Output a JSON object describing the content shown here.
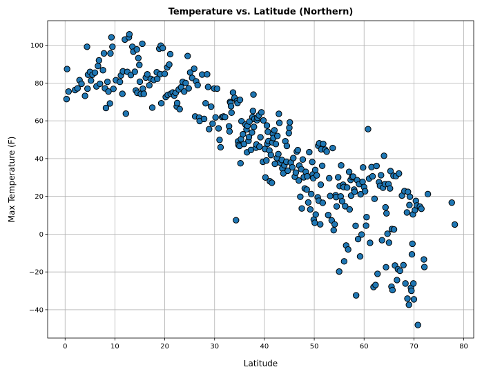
{
  "chart_data": {
    "type": "scatter",
    "title": "Temperature vs. Latitude (Northern)",
    "xlabel": "Latitude",
    "ylabel": "Max Temperature (F)",
    "xlim": [
      -3.5,
      82
    ],
    "ylim": [
      -55,
      113
    ],
    "xticks": [
      0,
      10,
      20,
      30,
      40,
      50,
      60,
      70,
      80
    ],
    "yticks": [
      -40,
      -20,
      0,
      20,
      40,
      60,
      80,
      100
    ],
    "grid": true,
    "marker_color": "#1f77b4",
    "marker_edge_color": "#000000",
    "points": [
      [
        0.3,
        71.5
      ],
      [
        0.4,
        87.4
      ],
      [
        0.7,
        75.5
      ],
      [
        2.0,
        76.3
      ],
      [
        2.5,
        77.2
      ],
      [
        2.9,
        81.5
      ],
      [
        3.3,
        79.6
      ],
      [
        4.0,
        73.2
      ],
      [
        4.4,
        99.2
      ],
      [
        4.5,
        77.0
      ],
      [
        4.6,
        84.4
      ],
      [
        5.0,
        85.9
      ],
      [
        5.2,
        81.3
      ],
      [
        5.5,
        84.4
      ],
      [
        6.0,
        85.5
      ],
      [
        6.3,
        78.2
      ],
      [
        6.6,
        89.0
      ],
      [
        6.8,
        92.0
      ],
      [
        7.0,
        79.6
      ],
      [
        7.6,
        86.8
      ],
      [
        7.8,
        95.7
      ],
      [
        8.0,
        77.2
      ],
      [
        8.2,
        66.8
      ],
      [
        8.5,
        80.6
      ],
      [
        8.7,
        75.5
      ],
      [
        9.0,
        69.2
      ],
      [
        9.1,
        95.7
      ],
      [
        9.3,
        104.2
      ],
      [
        9.5,
        99.2
      ],
      [
        9.7,
        76.9
      ],
      [
        10.2,
        81.5
      ],
      [
        11.0,
        80.6
      ],
      [
        11.2,
        84.0
      ],
      [
        11.5,
        74.3
      ],
      [
        11.6,
        86.2
      ],
      [
        12.0,
        103.0
      ],
      [
        12.2,
        63.8
      ],
      [
        12.5,
        85.9
      ],
      [
        12.8,
        104.2
      ],
      [
        12.9,
        105.8
      ],
      [
        13.2,
        84.2
      ],
      [
        13.5,
        99.2
      ],
      [
        13.7,
        96.6
      ],
      [
        14.0,
        86.0
      ],
      [
        14.2,
        76.1
      ],
      [
        14.4,
        97.8
      ],
      [
        14.5,
        74.8
      ],
      [
        14.7,
        93.2
      ],
      [
        14.9,
        89.6
      ],
      [
        15.0,
        80.7
      ],
      [
        15.2,
        74.2
      ],
      [
        15.5,
        100.8
      ],
      [
        15.6,
        77.0
      ],
      [
        15.8,
        74.3
      ],
      [
        16.2,
        82.9
      ],
      [
        16.5,
        84.6
      ],
      [
        16.9,
        78.8
      ],
      [
        17.2,
        82.2
      ],
      [
        17.5,
        67.0
      ],
      [
        17.8,
        81.6
      ],
      [
        18.4,
        85.7
      ],
      [
        18.5,
        82.2
      ],
      [
        18.9,
        98.2
      ],
      [
        19.1,
        84.7
      ],
      [
        19.2,
        99.8
      ],
      [
        19.3,
        69.3
      ],
      [
        19.6,
        98.5
      ],
      [
        20.0,
        84.9
      ],
      [
        20.2,
        72.6
      ],
      [
        20.5,
        88.3
      ],
      [
        20.6,
        73.7
      ],
      [
        20.9,
        89.8
      ],
      [
        21.1,
        95.3
      ],
      [
        21.2,
        74.3
      ],
      [
        21.6,
        75.0
      ],
      [
        21.9,
        73.3
      ],
      [
        22.2,
        74.8
      ],
      [
        22.4,
        67.6
      ],
      [
        22.5,
        69.4
      ],
      [
        22.8,
        76.6
      ],
      [
        23.0,
        66.2
      ],
      [
        23.3,
        77.8
      ],
      [
        23.6,
        80.6
      ],
      [
        23.9,
        75.5
      ],
      [
        24.2,
        80.0
      ],
      [
        24.6,
        94.3
      ],
      [
        24.8,
        77.2
      ],
      [
        25.1,
        85.6
      ],
      [
        25.5,
        82.7
      ],
      [
        25.9,
        87.6
      ],
      [
        26.1,
        62.3
      ],
      [
        26.3,
        80.9
      ],
      [
        26.6,
        78.9
      ],
      [
        26.9,
        61.7
      ],
      [
        27.0,
        59.9
      ],
      [
        27.5,
        84.5
      ],
      [
        27.9,
        61.0
      ],
      [
        28.2,
        69.3
      ],
      [
        28.5,
        84.6
      ],
      [
        28.7,
        77.9
      ],
      [
        28.9,
        55.6
      ],
      [
        29.3,
        67.5
      ],
      [
        29.6,
        58.5
      ],
      [
        29.9,
        77.1
      ],
      [
        30.2,
        61.8
      ],
      [
        30.5,
        77.0
      ],
      [
        30.8,
        56.0
      ],
      [
        31.0,
        49.9
      ],
      [
        31.2,
        46.0
      ],
      [
        31.5,
        62.0
      ],
      [
        31.8,
        62.3
      ],
      [
        32.1,
        62.0
      ],
      [
        32.9,
        57.1
      ],
      [
        33.0,
        54.4
      ],
      [
        33.1,
        70.0
      ],
      [
        33.2,
        69.5
      ],
      [
        33.3,
        67.7
      ],
      [
        33.4,
        64.3
      ],
      [
        33.7,
        75.0
      ],
      [
        34.0,
        72.2
      ],
      [
        34.3,
        7.4
      ],
      [
        34.5,
        70.5
      ],
      [
        34.6,
        69.4
      ],
      [
        34.7,
        49.1
      ],
      [
        34.8,
        47.2
      ],
      [
        35.0,
        46.7
      ],
      [
        35.1,
        71.1
      ],
      [
        35.2,
        37.5
      ],
      [
        35.3,
        50.3
      ],
      [
        35.4,
        59.8
      ],
      [
        35.7,
        52.9
      ],
      [
        35.9,
        47.7
      ],
      [
        36.2,
        58.0
      ],
      [
        36.4,
        55.5
      ],
      [
        36.5,
        43.3
      ],
      [
        36.6,
        57.3
      ],
      [
        36.8,
        49.4
      ],
      [
        36.9,
        51.4
      ],
      [
        37.0,
        59.6
      ],
      [
        37.3,
        44.6
      ],
      [
        37.5,
        53.8
      ],
      [
        37.6,
        62.0
      ],
      [
        37.7,
        65.2
      ],
      [
        37.8,
        73.9
      ],
      [
        37.9,
        56.8
      ],
      [
        38.0,
        61.0
      ],
      [
        38.3,
        45.8
      ],
      [
        38.4,
        47.5
      ],
      [
        38.5,
        60.3
      ],
      [
        38.6,
        61.6
      ],
      [
        38.9,
        62.9
      ],
      [
        39.0,
        46.3
      ],
      [
        39.2,
        51.3
      ],
      [
        39.4,
        64.5
      ],
      [
        39.7,
        38.3
      ],
      [
        39.8,
        60.2
      ],
      [
        40.1,
        45.1
      ],
      [
        40.2,
        30.0
      ],
      [
        40.4,
        39.0
      ],
      [
        40.5,
        57.5
      ],
      [
        40.6,
        47.8
      ],
      [
        40.7,
        54.2
      ],
      [
        40.8,
        49.3
      ],
      [
        41.0,
        44.3
      ],
      [
        41.1,
        28.0
      ],
      [
        41.3,
        41.9
      ],
      [
        41.5,
        27.2
      ],
      [
        41.6,
        48.6
      ],
      [
        41.7,
        53.1
      ],
      [
        41.8,
        50.9
      ],
      [
        42.0,
        55.0
      ],
      [
        42.1,
        37.2
      ],
      [
        42.3,
        47.7
      ],
      [
        42.5,
        40.3
      ],
      [
        42.6,
        52.0
      ],
      [
        42.8,
        42.4
      ],
      [
        42.9,
        63.7
      ],
      [
        43.0,
        58.9
      ],
      [
        43.2,
        37.8
      ],
      [
        43.5,
        39.3
      ],
      [
        43.6,
        34.8
      ],
      [
        43.8,
        32.2
      ],
      [
        44.0,
        36.5
      ],
      [
        44.2,
        49.2
      ],
      [
        44.4,
        38.3
      ],
      [
        44.5,
        46.7
      ],
      [
        44.7,
        33.6
      ],
      [
        44.9,
        53.5
      ],
      [
        45.0,
        56.3
      ],
      [
        45.1,
        59.2
      ],
      [
        45.3,
        37.9
      ],
      [
        45.6,
        35.4
      ],
      [
        45.8,
        40.3
      ],
      [
        46.1,
        30.4
      ],
      [
        46.3,
        32.6
      ],
      [
        46.5,
        43.7
      ],
      [
        46.7,
        44.5
      ],
      [
        46.9,
        28.4
      ],
      [
        47.0,
        36.3
      ],
      [
        47.2,
        19.8
      ],
      [
        47.4,
        34.4
      ],
      [
        47.5,
        13.6
      ],
      [
        47.7,
        39.5
      ],
      [
        47.9,
        30.1
      ],
      [
        48.1,
        24.2
      ],
      [
        48.3,
        33.0
      ],
      [
        48.5,
        23.6
      ],
      [
        48.6,
        30.6
      ],
      [
        48.8,
        16.8
      ],
      [
        49.0,
        43.4
      ],
      [
        49.2,
        13.1
      ],
      [
        49.4,
        21.2
      ],
      [
        49.6,
        38.2
      ],
      [
        49.7,
        31.6
      ],
      [
        49.8,
        29.6
      ],
      [
        49.9,
        7.7
      ],
      [
        50.1,
        6.0
      ],
      [
        50.2,
        34.0
      ],
      [
        50.3,
        10.4
      ],
      [
        50.5,
        31.1
      ],
      [
        50.7,
        19.5
      ],
      [
        50.8,
        46.8
      ],
      [
        50.9,
        17.7
      ],
      [
        51.0,
        48.1
      ],
      [
        51.2,
        5.2
      ],
      [
        51.3,
        26.2
      ],
      [
        51.4,
        44.9
      ],
      [
        51.6,
        36.2
      ],
      [
        51.7,
        16.6
      ],
      [
        51.8,
        47.8
      ],
      [
        52.2,
        44.7
      ],
      [
        52.5,
        43.7
      ],
      [
        52.8,
        10.1
      ],
      [
        53.0,
        29.6
      ],
      [
        53.2,
        20.2
      ],
      [
        53.5,
        7.3
      ],
      [
        53.7,
        45.6
      ],
      [
        53.9,
        2.1
      ],
      [
        54.1,
        5.2
      ],
      [
        54.3,
        20.6
      ],
      [
        54.4,
        19.6
      ],
      [
        54.5,
        14.7
      ],
      [
        54.8,
        30.1
      ],
      [
        55.0,
        -19.8
      ],
      [
        55.1,
        25.4
      ],
      [
        55.3,
        20.0
      ],
      [
        55.4,
        36.4
      ],
      [
        55.6,
        17.4
      ],
      [
        55.8,
        26.2
      ],
      [
        55.9,
        24.9
      ],
      [
        56.0,
        -14.4
      ],
      [
        56.2,
        14.8
      ],
      [
        56.4,
        -6.0
      ],
      [
        56.6,
        24.7
      ],
      [
        56.8,
        -8.1
      ],
      [
        57.0,
        33.0
      ],
      [
        57.1,
        13.1
      ],
      [
        57.3,
        28.7
      ],
      [
        57.4,
        20.4
      ],
      [
        57.6,
        30.2
      ],
      [
        57.8,
        30.5
      ],
      [
        58.0,
        23.6
      ],
      [
        58.1,
        22.4
      ],
      [
        58.3,
        4.4
      ],
      [
        58.4,
        -32.4
      ],
      [
        58.6,
        28.6
      ],
      [
        58.8,
        -2.6
      ],
      [
        59.0,
        26.5
      ],
      [
        59.2,
        -11.8
      ],
      [
        59.3,
        21.1
      ],
      [
        59.5,
        -0.2
      ],
      [
        59.7,
        27.7
      ],
      [
        59.8,
        35.3
      ],
      [
        60.0,
        24.9
      ],
      [
        60.2,
        22.7
      ],
      [
        60.4,
        4.5
      ],
      [
        60.5,
        9.0
      ],
      [
        60.8,
        55.6
      ],
      [
        61.0,
        29.4
      ],
      [
        61.2,
        -4.6
      ],
      [
        61.5,
        35.5
      ],
      [
        61.7,
        30.6
      ],
      [
        61.9,
        -28.0
      ],
      [
        62.1,
        18.7
      ],
      [
        62.3,
        -26.9
      ],
      [
        62.5,
        36.1
      ],
      [
        62.7,
        -21.0
      ],
      [
        63.0,
        27.5
      ],
      [
        63.2,
        25.6
      ],
      [
        63.4,
        31.2
      ],
      [
        63.6,
        -3.2
      ],
      [
        63.8,
        24.6
      ],
      [
        64.0,
        41.5
      ],
      [
        64.2,
        26.5
      ],
      [
        64.3,
        14.2
      ],
      [
        64.4,
        -17.5
      ],
      [
        64.5,
        11.0
      ],
      [
        64.7,
        0.2
      ],
      [
        64.9,
        26.5
      ],
      [
        65.0,
        -4.5
      ],
      [
        65.2,
        24.2
      ],
      [
        65.3,
        33.4
      ],
      [
        65.5,
        -27.8
      ],
      [
        65.6,
        2.7
      ],
      [
        65.7,
        -29.6
      ],
      [
        65.9,
        30.9
      ],
      [
        66.0,
        2.5
      ],
      [
        66.2,
        -16.6
      ],
      [
        66.4,
        30.7
      ],
      [
        66.6,
        -24.3
      ],
      [
        66.8,
        -18.6
      ],
      [
        67.0,
        32.1
      ],
      [
        67.2,
        -19.4
      ],
      [
        67.6,
        20.4
      ],
      [
        67.9,
        -16.4
      ],
      [
        68.1,
        22.8
      ],
      [
        68.3,
        -26.1
      ],
      [
        68.6,
        11.5
      ],
      [
        68.7,
        -34.1
      ],
      [
        68.8,
        22.4
      ],
      [
        69.0,
        -37.4
      ],
      [
        69.1,
        15.4
      ],
      [
        69.2,
        19.8
      ],
      [
        69.4,
        -28.4
      ],
      [
        69.5,
        -30.0
      ],
      [
        69.6,
        -10.7
      ],
      [
        69.7,
        -5.1
      ],
      [
        69.8,
        10.5
      ],
      [
        69.9,
        -26.1
      ],
      [
        70.0,
        -34.5
      ],
      [
        70.2,
        12.7
      ],
      [
        70.4,
        17.6
      ],
      [
        70.6,
        15.2
      ],
      [
        70.8,
        -48.1
      ],
      [
        71.2,
        14.6
      ],
      [
        71.5,
        13.4
      ],
      [
        72.0,
        -13.4
      ],
      [
        72.1,
        -17.4
      ],
      [
        72.8,
        21.2
      ],
      [
        77.6,
        16.7
      ],
      [
        78.2,
        5.1
      ]
    ]
  }
}
